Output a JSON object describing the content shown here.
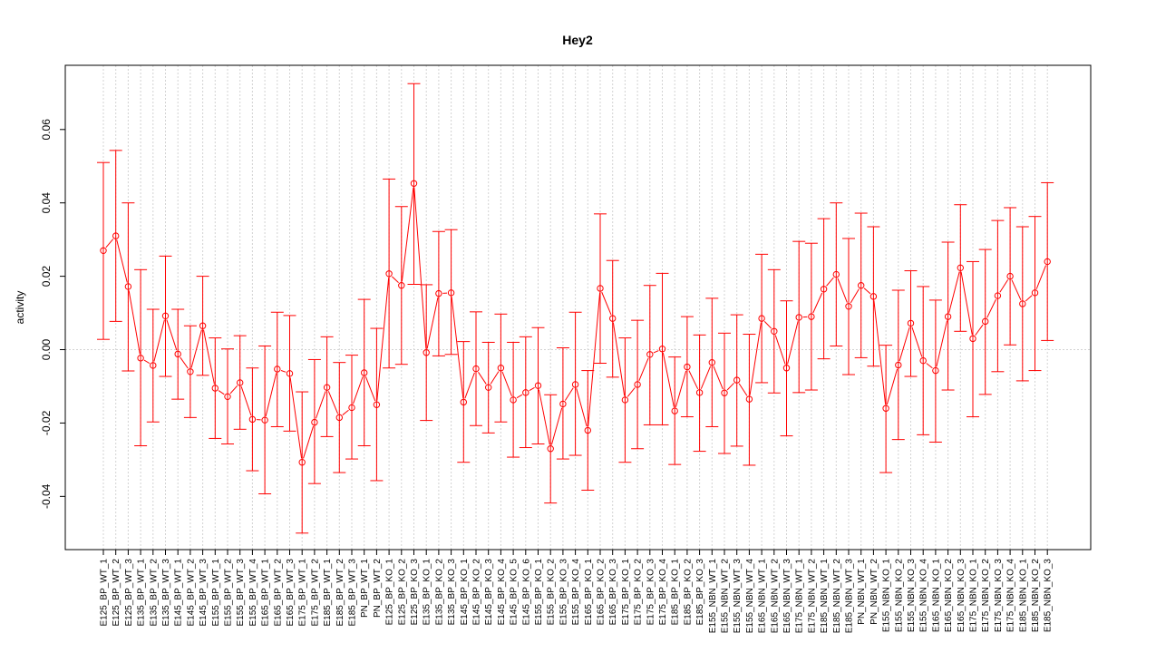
{
  "chart_data": {
    "type": "line",
    "title": "Hey2",
    "xlabel": "",
    "ylabel": "activity",
    "ylim": [
      -0.0545,
      0.0775
    ],
    "yticks": [
      -0.04,
      -0.02,
      0.0,
      0.02,
      0.04,
      0.06
    ],
    "ytick_labels": [
      "-0.04",
      "-0.02",
      "0.00",
      "0.02",
      "0.04",
      "0.06"
    ],
    "grid": true,
    "colors": {
      "series": "#ff0000",
      "grid": "#d3d3d3",
      "frame": "#000000"
    },
    "categories": [
      "E125_BP_WT_1",
      "E125_BP_WT_2",
      "E125_BP_WT_3",
      "E135_BP_WT_1",
      "E135_BP_WT_2",
      "E135_BP_WT_3",
      "E145_BP_WT_1",
      "E145_BP_WT_2",
      "E145_BP_WT_3",
      "E155_BP_WT_1",
      "E155_BP_WT_2",
      "E155_BP_WT_3",
      "E155_BP_WT_4",
      "E165_BP_WT_1",
      "E165_BP_WT_2",
      "E165_BP_WT_3",
      "E175_BP_WT_1",
      "E175_BP_WT_2",
      "E185_BP_WT_1",
      "E185_BP_WT_2",
      "E185_BP_WT_3",
      "PN_BP_WT_1",
      "PN_BP_WT_2",
      "E125_BP_KO_1",
      "E125_BP_KO_2",
      "E125_BP_KO_3",
      "E135_BP_KO_1",
      "E135_BP_KO_2",
      "E135_BP_KO_3",
      "E145_BP_KO_1",
      "E145_BP_KO_2",
      "E145_BP_KO_3",
      "E145_BP_KO_4",
      "E145_BP_KO_5",
      "E145_BP_KO_6",
      "E155_BP_KO_1",
      "E155_BP_KO_2",
      "E155_BP_KO_3",
      "E155_BP_KO_4",
      "E165_BP_KO_1",
      "E165_BP_KO_2",
      "E165_BP_KO_3",
      "E175_BP_KO_1",
      "E175_BP_KO_2",
      "E175_BP_KO_3",
      "E175_BP_KO_4",
      "E185_BP_KO_1",
      "E185_BP_KO_2",
      "E185_BP_KO_3",
      "E155_NBN_WT_1",
      "E155_NBN_WT_2",
      "E155_NBN_WT_3",
      "E155_NBN_WT_4",
      "E165_NBN_WT_1",
      "E165_NBN_WT_2",
      "E165_NBN_WT_3",
      "E175_NBN_WT_1",
      "E175_NBN_WT_2",
      "E185_NBN_WT_1",
      "E185_NBN_WT_2",
      "E185_NBN_WT_3",
      "PN_NBN_WT_1",
      "PN_NBN_WT_2",
      "E155_NBN_KO_1",
      "E155_NBN_KO_2",
      "E155_NBN_KO_3",
      "E155_NBN_KO_4",
      "E165_NBN_KO_1",
      "E165_NBN_KO_2",
      "E165_NBN_KO_3",
      "E175_NBN_KO_1",
      "E175_NBN_KO_2",
      "E175_NBN_KO_3",
      "E175_NBN_KO_4",
      "E185_NBN_KO_1",
      "E185_NBN_KO_2",
      "E185_NBN_KO_3"
    ],
    "series": [
      {
        "values": [
          0.027,
          0.031,
          0.0172,
          -0.0023,
          -0.0043,
          0.0092,
          -0.0012,
          -0.006,
          0.0065,
          -0.0105,
          -0.0128,
          -0.009,
          -0.019,
          -0.0192,
          -0.0053,
          -0.0065,
          -0.0307,
          -0.0198,
          -0.0103,
          -0.0185,
          -0.0158,
          -0.0063,
          -0.015,
          0.0207,
          0.0175,
          0.0453,
          -0.0008,
          0.0153,
          0.0155,
          -0.0143,
          -0.0052,
          -0.0103,
          -0.005,
          -0.0137,
          -0.0117,
          -0.0098,
          -0.027,
          -0.0148,
          -0.0095,
          -0.022,
          0.0167,
          0.0085,
          -0.0137,
          -0.0095,
          -0.0013,
          0.0002,
          -0.0167,
          -0.0047,
          -0.0117,
          -0.0035,
          -0.0118,
          -0.0083,
          -0.0135,
          0.0085,
          0.005,
          -0.005,
          0.0088,
          0.009,
          0.0165,
          0.0205,
          0.0118,
          0.0175,
          0.0145,
          -0.016,
          -0.0042,
          0.0072,
          -0.003,
          -0.0057,
          0.009,
          0.0223,
          0.003,
          0.0077,
          0.0147,
          0.02,
          0.0125,
          0.0155,
          0.024
        ],
        "lower": [
          0.0028,
          0.0077,
          -0.0058,
          -0.0262,
          -0.0197,
          -0.0073,
          -0.0135,
          -0.0185,
          -0.007,
          -0.0242,
          -0.0257,
          -0.0217,
          -0.033,
          -0.0393,
          -0.021,
          -0.0222,
          -0.05,
          -0.0365,
          -0.0237,
          -0.0335,
          -0.0298,
          -0.0262,
          -0.0357,
          -0.005,
          -0.004,
          0.0178,
          -0.0193,
          -0.0017,
          -0.0013,
          -0.0307,
          -0.0207,
          -0.0227,
          -0.0197,
          -0.0293,
          -0.0267,
          -0.0257,
          -0.0418,
          -0.0298,
          -0.0288,
          -0.0383,
          -0.0037,
          -0.0075,
          -0.0307,
          -0.027,
          -0.0205,
          -0.0205,
          -0.0313,
          -0.0183,
          -0.0277,
          -0.021,
          -0.0283,
          -0.0263,
          -0.0315,
          -0.009,
          -0.0118,
          -0.0235,
          -0.0117,
          -0.011,
          -0.0025,
          0.001,
          -0.0068,
          -0.0022,
          -0.0045,
          -0.0335,
          -0.0245,
          -0.0073,
          -0.0232,
          -0.0252,
          -0.011,
          0.005,
          -0.0183,
          -0.0122,
          -0.006,
          0.0013,
          -0.0085,
          -0.0057,
          0.0025
        ],
        "upper": [
          0.051,
          0.0543,
          0.04,
          0.0218,
          0.011,
          0.0255,
          0.011,
          0.0065,
          0.02,
          0.0032,
          0.0002,
          0.0038,
          -0.005,
          0.001,
          0.0102,
          0.0093,
          -0.0115,
          -0.0027,
          0.0035,
          -0.0035,
          -0.0015,
          0.0137,
          0.0058,
          0.0465,
          0.039,
          0.0725,
          0.0177,
          0.0322,
          0.0327,
          0.0022,
          0.0103,
          0.002,
          0.0097,
          0.002,
          0.0035,
          0.006,
          -0.0123,
          0.0005,
          0.0102,
          -0.0057,
          0.037,
          0.0243,
          0.0032,
          0.008,
          0.0175,
          0.0208,
          -0.002,
          0.009,
          0.004,
          0.014,
          0.0045,
          0.0095,
          0.0042,
          0.026,
          0.0218,
          0.0133,
          0.0295,
          0.029,
          0.0357,
          0.04,
          0.0303,
          0.0372,
          0.0335,
          0.0012,
          0.0162,
          0.0215,
          0.0172,
          0.0135,
          0.0293,
          0.0395,
          0.024,
          0.0273,
          0.0352,
          0.0387,
          0.0335,
          0.0363,
          0.0455
        ]
      }
    ]
  }
}
